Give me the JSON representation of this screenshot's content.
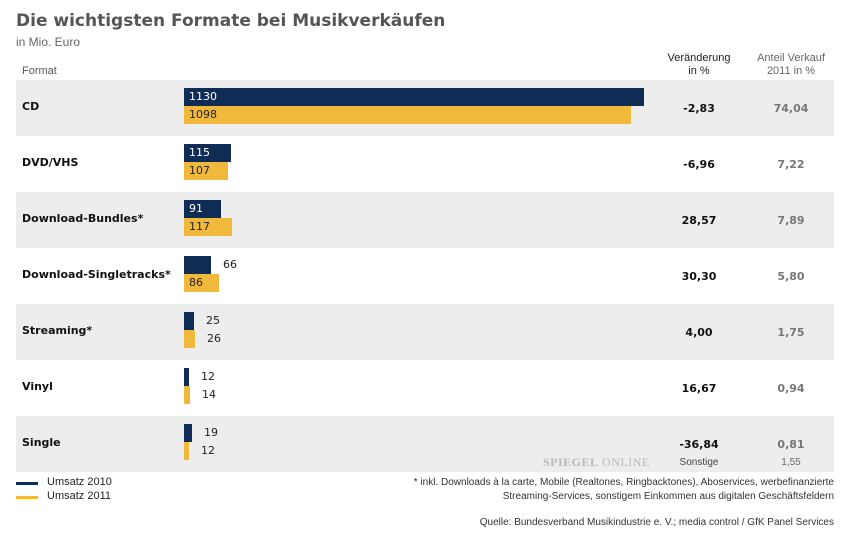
{
  "title": "Die wichtigsten Formate bei Musikverkäufen",
  "subtitle": "in Mio. Euro",
  "headers": {
    "format": "Format",
    "change": [
      "Veränderung",
      "in %"
    ],
    "share": [
      "Anteil Verkauf",
      "2011 in %"
    ]
  },
  "chart_data": {
    "type": "bar",
    "categories": [
      "CD",
      "DVD/VHS",
      "Download-Bundles*",
      "Download-Singletracks*",
      "Streaming*",
      "Vinyl",
      "Single"
    ],
    "series": [
      {
        "name": "Umsatz 2010",
        "color": "#0f2c55",
        "values": [
          1130,
          115,
          91,
          66,
          25,
          12,
          19
        ]
      },
      {
        "name": "Umsatz 2011",
        "color": "#f0b93c",
        "values": [
          1098,
          107,
          117,
          86,
          26,
          14,
          12
        ]
      }
    ],
    "change_percent": [
      "-2,83",
      "-6,96",
      "28,57",
      "30,30",
      "4,00",
      "16,67",
      "-36,84"
    ],
    "share_2011_percent": [
      "74,04",
      "7,22",
      "7,89",
      "5,80",
      "1,75",
      "0,94",
      "0,81"
    ],
    "other": {
      "label": "Sonstige",
      "share_2011_percent": "1,55"
    },
    "title": "Die wichtigsten Formate bei Musikverkäufen",
    "xlabel": "",
    "ylabel": ""
  },
  "legend": [
    {
      "label": "Umsatz 2010",
      "color": "#0f2c55"
    },
    {
      "label": "Umsatz 2011",
      "color": "#f0b93c"
    }
  ],
  "watermark": {
    "bold": "SPIEGEL",
    "regular": "ONLINE"
  },
  "footnote": [
    "* inkl. Downloads à la carte, Mobile (Realtones, Ringbacktones), Aboservices, werbefinanzierte",
    "Streaming-Services, sonstigem Einkommen aus digitalen Geschäftsfeldern"
  ],
  "source": "Quelle: Bundesverband Musikindustrie e. V.; media control / GfK Panel Services"
}
